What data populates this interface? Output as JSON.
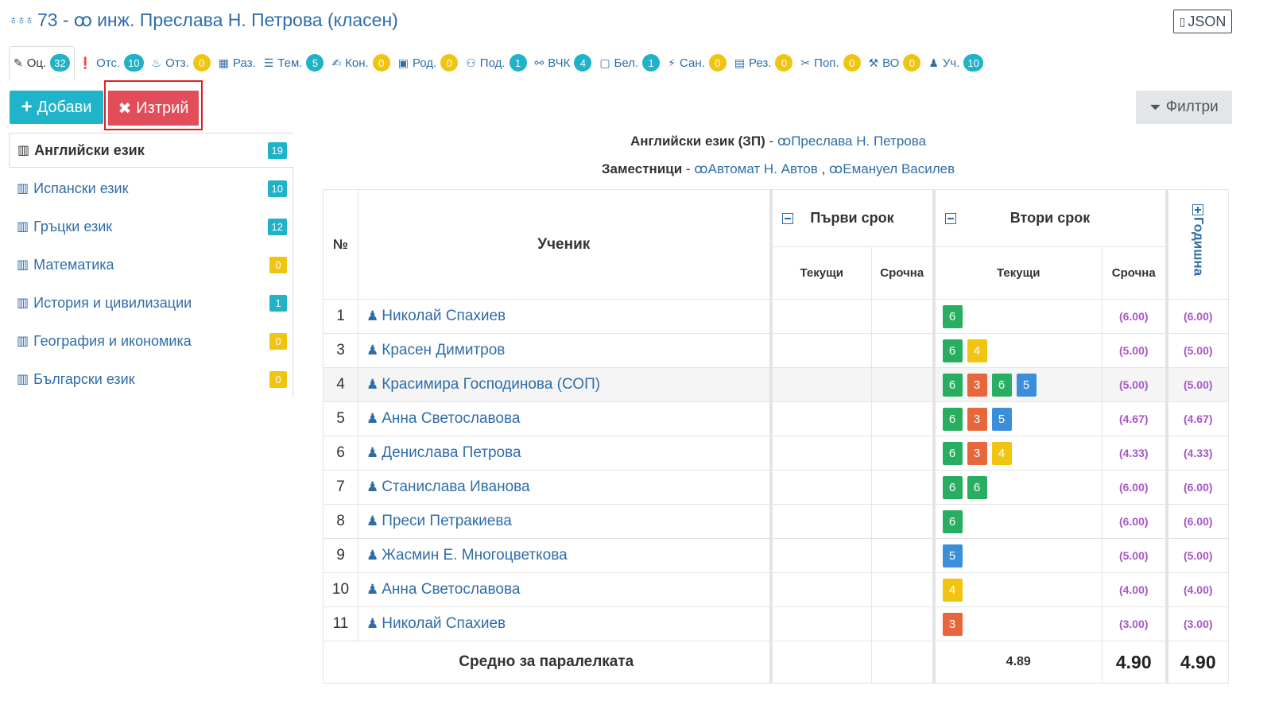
{
  "header": {
    "class_label": "73 - ",
    "teacher": "инж. Преслава Н. Петрова (класен)",
    "json_label": "JSON"
  },
  "tabs": [
    {
      "label": "Оц.",
      "count": "32",
      "color": "blue",
      "icon": "pencil-icon",
      "glyph": "✎"
    },
    {
      "label": "Отс.",
      "count": "10",
      "color": "blue",
      "icon": "exclamation-icon",
      "glyph": "❗"
    },
    {
      "label": "Отз.",
      "count": "0",
      "color": "yellow",
      "icon": "award-icon",
      "glyph": "♨"
    },
    {
      "label": "Раз.",
      "count": "",
      "color": "",
      "icon": "table-icon",
      "glyph": "▦"
    },
    {
      "label": "Тем.",
      "count": "5",
      "color": "blue",
      "icon": "list-icon",
      "glyph": "☰"
    },
    {
      "label": "Кон.",
      "count": "0",
      "color": "yellow",
      "icon": "edit-icon",
      "glyph": "✍"
    },
    {
      "label": "Род.",
      "count": "0",
      "color": "yellow",
      "icon": "calendar-icon",
      "glyph": "▣"
    },
    {
      "label": "Под.",
      "count": "1",
      "color": "blue",
      "icon": "handshake-icon",
      "glyph": "⚇"
    },
    {
      "label": "ВЧК",
      "count": "4",
      "color": "blue",
      "icon": "handshake-alt-icon",
      "glyph": "⚯"
    },
    {
      "label": "Бел.",
      "count": "1",
      "color": "blue",
      "icon": "note-icon",
      "glyph": "▢"
    },
    {
      "label": "Сан.",
      "count": "0",
      "color": "yellow",
      "icon": "bolt-icon",
      "glyph": "⚡"
    },
    {
      "label": "Рез.",
      "count": "0",
      "color": "yellow",
      "icon": "document-icon",
      "glyph": "▤"
    },
    {
      "label": "Поп.",
      "count": "0",
      "color": "yellow",
      "icon": "tools-icon",
      "glyph": "✂"
    },
    {
      "label": "ВО",
      "count": "0",
      "color": "yellow",
      "icon": "hammer-icon",
      "glyph": "⚒"
    },
    {
      "label": "Уч.",
      "count": "10",
      "color": "blue",
      "icon": "student-icon",
      "glyph": "♟"
    }
  ],
  "actions": {
    "add_label": "Добави",
    "delete_label": "Изтрий",
    "filter_label": "Филтри"
  },
  "subjects": [
    {
      "name": "Английски език",
      "count": "19",
      "color": "#20b2c6"
    },
    {
      "name": "Испански език",
      "count": "10",
      "color": "#20b2c6"
    },
    {
      "name": "Гръцки език",
      "count": "12",
      "color": "#20b2c6"
    },
    {
      "name": "Математика",
      "count": "0",
      "color": "#f1c40f"
    },
    {
      "name": "История и цивилизации",
      "count": "1",
      "color": "#20b2c6"
    },
    {
      "name": "География и икономика",
      "count": "0",
      "color": "#f1c40f"
    },
    {
      "name": "Български език",
      "count": "0",
      "color": "#f1c40f"
    }
  ],
  "course": {
    "subject": "Английски език (ЗП)",
    "teacher": "Преслава Н. Петрова",
    "deputies_label": "Заместници",
    "deputy1": "Автомат Н. Автов",
    "deputy2": "Емануел Василев",
    "dash": " - ",
    "comma": " , "
  },
  "table": {
    "num_header": "№",
    "student_header": "Ученик",
    "term1": "Първи срок",
    "term2": "Втори срок",
    "current": "Текущи",
    "term_grade": "Срочна",
    "annual": "Годишна",
    "rows": [
      {
        "num": "1",
        "name": "Николай Спахиев",
        "grades": [
          "6"
        ],
        "t2": "(6.00)",
        "year": "(6.00)"
      },
      {
        "num": "3",
        "name": "Красен Димитров",
        "grades": [
          "6",
          "4"
        ],
        "t2": "(5.00)",
        "year": "(5.00)"
      },
      {
        "num": "4",
        "name": "Красимира Господинова (СОП)",
        "grades": [
          "6",
          "3",
          "6",
          "5"
        ],
        "t2": "(5.00)",
        "year": "(5.00)"
      },
      {
        "num": "5",
        "name": "Анна Светославова",
        "grades": [
          "6",
          "3",
          "5"
        ],
        "t2": "(4.67)",
        "year": "(4.67)"
      },
      {
        "num": "6",
        "name": "Денислава Петрова",
        "grades": [
          "6",
          "3",
          "4"
        ],
        "t2": "(4.33)",
        "year": "(4.33)"
      },
      {
        "num": "7",
        "name": "Станислава Иванова",
        "grades": [
          "6",
          "6"
        ],
        "t2": "(6.00)",
        "year": "(6.00)"
      },
      {
        "num": "8",
        "name": "Преси Петракиева",
        "grades": [
          "6"
        ],
        "t2": "(6.00)",
        "year": "(6.00)"
      },
      {
        "num": "9",
        "name": "Жасмин Е. Многоцветкова",
        "grades": [
          "5"
        ],
        "t2": "(5.00)",
        "year": "(5.00)"
      },
      {
        "num": "10",
        "name": "Анна Светославова",
        "grades": [
          "4"
        ],
        "t2": "(4.00)",
        "year": "(4.00)"
      },
      {
        "num": "11",
        "name": "Николай Спахиев",
        "grades": [
          "3"
        ],
        "t2": "(3.00)",
        "year": "(3.00)"
      }
    ],
    "footer": {
      "label": "Средно за паралелката",
      "current_avg": "4.89",
      "term_avg": "4.90",
      "year_avg": "4.90"
    }
  }
}
